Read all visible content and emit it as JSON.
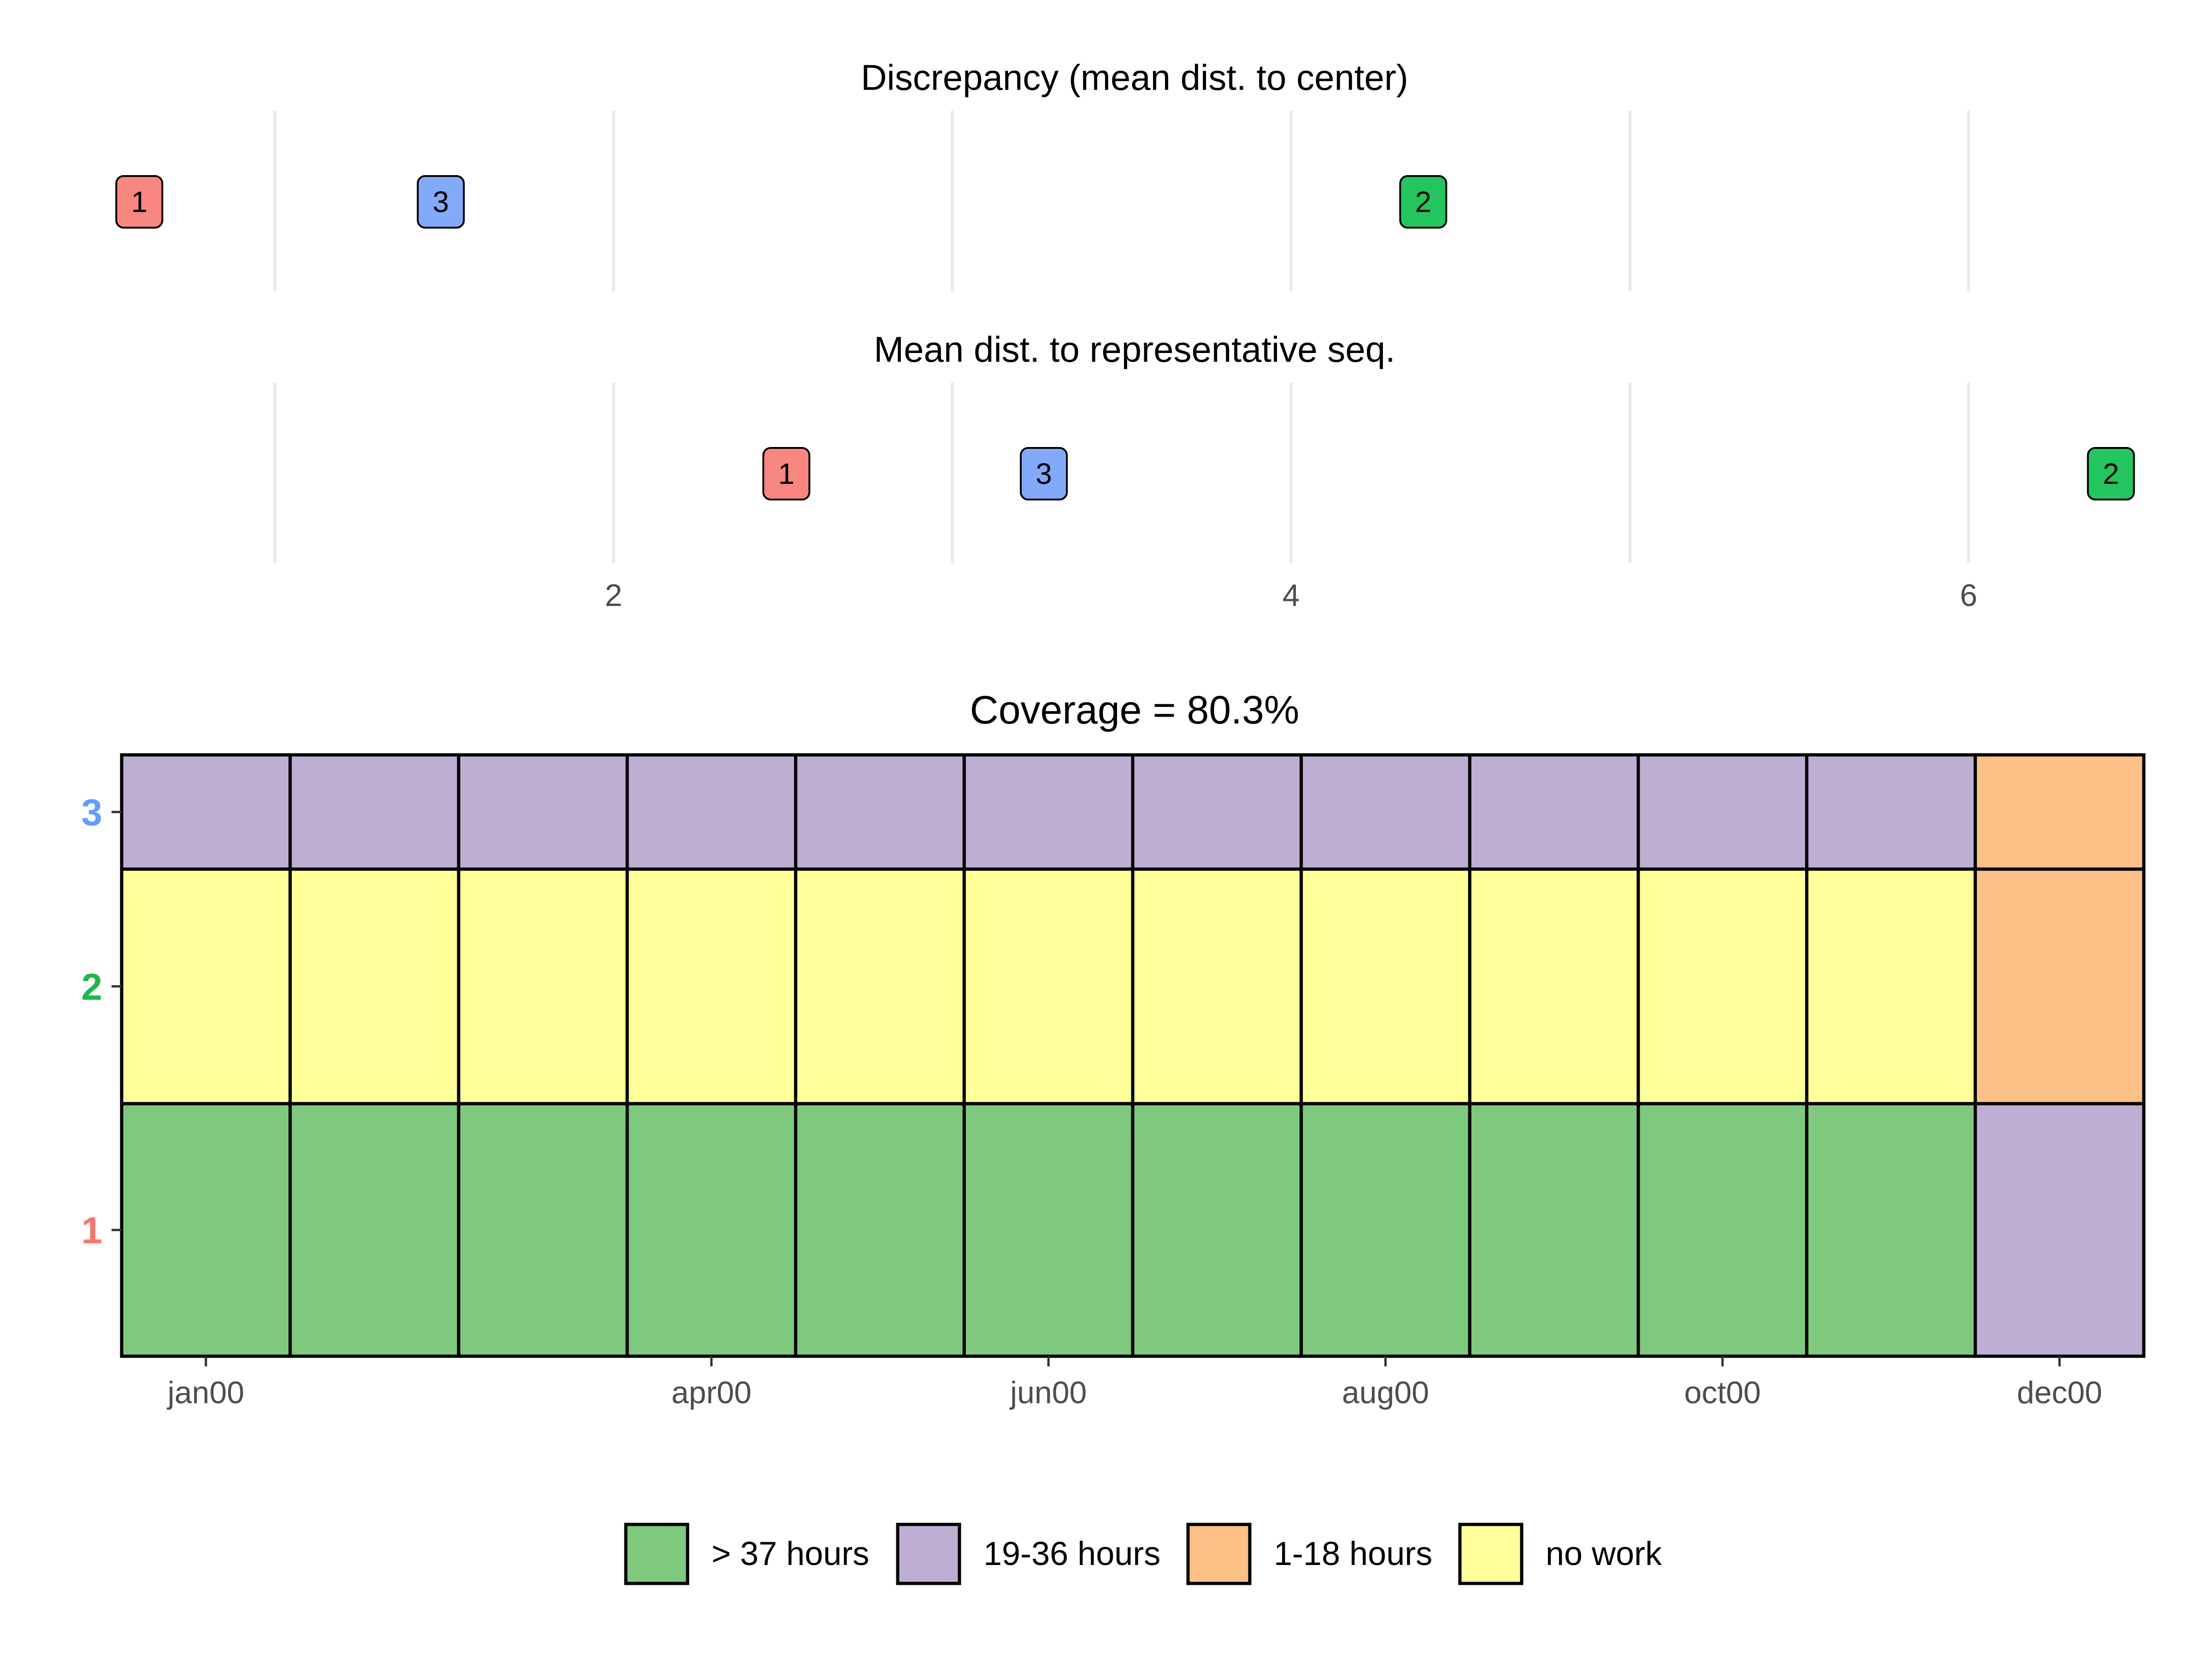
{
  "chart_data": [
    {
      "type": "scatter",
      "title": "Discrepancy (mean dist. to center)",
      "xlim": [
        0.25,
        6.8
      ],
      "grid": true,
      "points": [
        {
          "label": "1",
          "x": 0.6,
          "color": "#f8877f"
        },
        {
          "label": "3",
          "x": 1.49,
          "color": "#83aaf9"
        },
        {
          "label": "2",
          "x": 4.39,
          "color": "#22c55e"
        }
      ]
    },
    {
      "type": "scatter",
      "title": "Mean dist. to representative seq.",
      "xlim": [
        0.25,
        6.8
      ],
      "grid": true,
      "x_ticks": [
        "2",
        "4",
        "6"
      ],
      "x_tick_values": [
        2,
        4,
        6
      ],
      "points": [
        {
          "label": "1",
          "x": 2.51,
          "color": "#f8877f"
        },
        {
          "label": "3",
          "x": 3.27,
          "color": "#83aaf9"
        },
        {
          "label": "2",
          "x": 6.42,
          "color": "#22c55e"
        }
      ]
    },
    {
      "type": "heatmap",
      "title": "Coverage = 80.3%",
      "months": 12,
      "x_ticks": [
        {
          "label": "jan00",
          "month": 1
        },
        {
          "label": "apr00",
          "month": 4
        },
        {
          "label": "jun00",
          "month": 6
        },
        {
          "label": "aug00",
          "month": 8
        },
        {
          "label": "oct00",
          "month": 10
        },
        {
          "label": "dec00",
          "month": 12
        }
      ],
      "rows": [
        {
          "label": "1",
          "label_color": "#f8766d",
          "weight": 0.42,
          "states": [
            "> 37 hours",
            "> 37 hours",
            "> 37 hours",
            "> 37 hours",
            "> 37 hours",
            "> 37 hours",
            "> 37 hours",
            "> 37 hours",
            "> 37 hours",
            "> 37 hours",
            "> 37 hours",
            "19-36 hours"
          ]
        },
        {
          "label": "2",
          "label_color": "#1bb84a",
          "weight": 0.39,
          "states": [
            "no work",
            "no work",
            "no work",
            "no work",
            "no work",
            "no work",
            "no work",
            "no work",
            "no work",
            "no work",
            "no work",
            "1-18 hours"
          ]
        },
        {
          "label": "3",
          "label_color": "#619cff",
          "weight": 0.19,
          "states": [
            "19-36 hours",
            "19-36 hours",
            "19-36 hours",
            "19-36 hours",
            "19-36 hours",
            "19-36 hours",
            "19-36 hours",
            "19-36 hours",
            "19-36 hours",
            "19-36 hours",
            "19-36 hours",
            "1-18 hours"
          ]
        }
      ],
      "legend": [
        {
          "label": "> 37 hours",
          "color": "#7fc97f"
        },
        {
          "label": "19-36 hours",
          "color": "#beaed4"
        },
        {
          "label": "1-18 hours",
          "color": "#fdc086"
        },
        {
          "label": "no work",
          "color": "#ffff99"
        }
      ],
      "legend_position": "bottom"
    }
  ]
}
